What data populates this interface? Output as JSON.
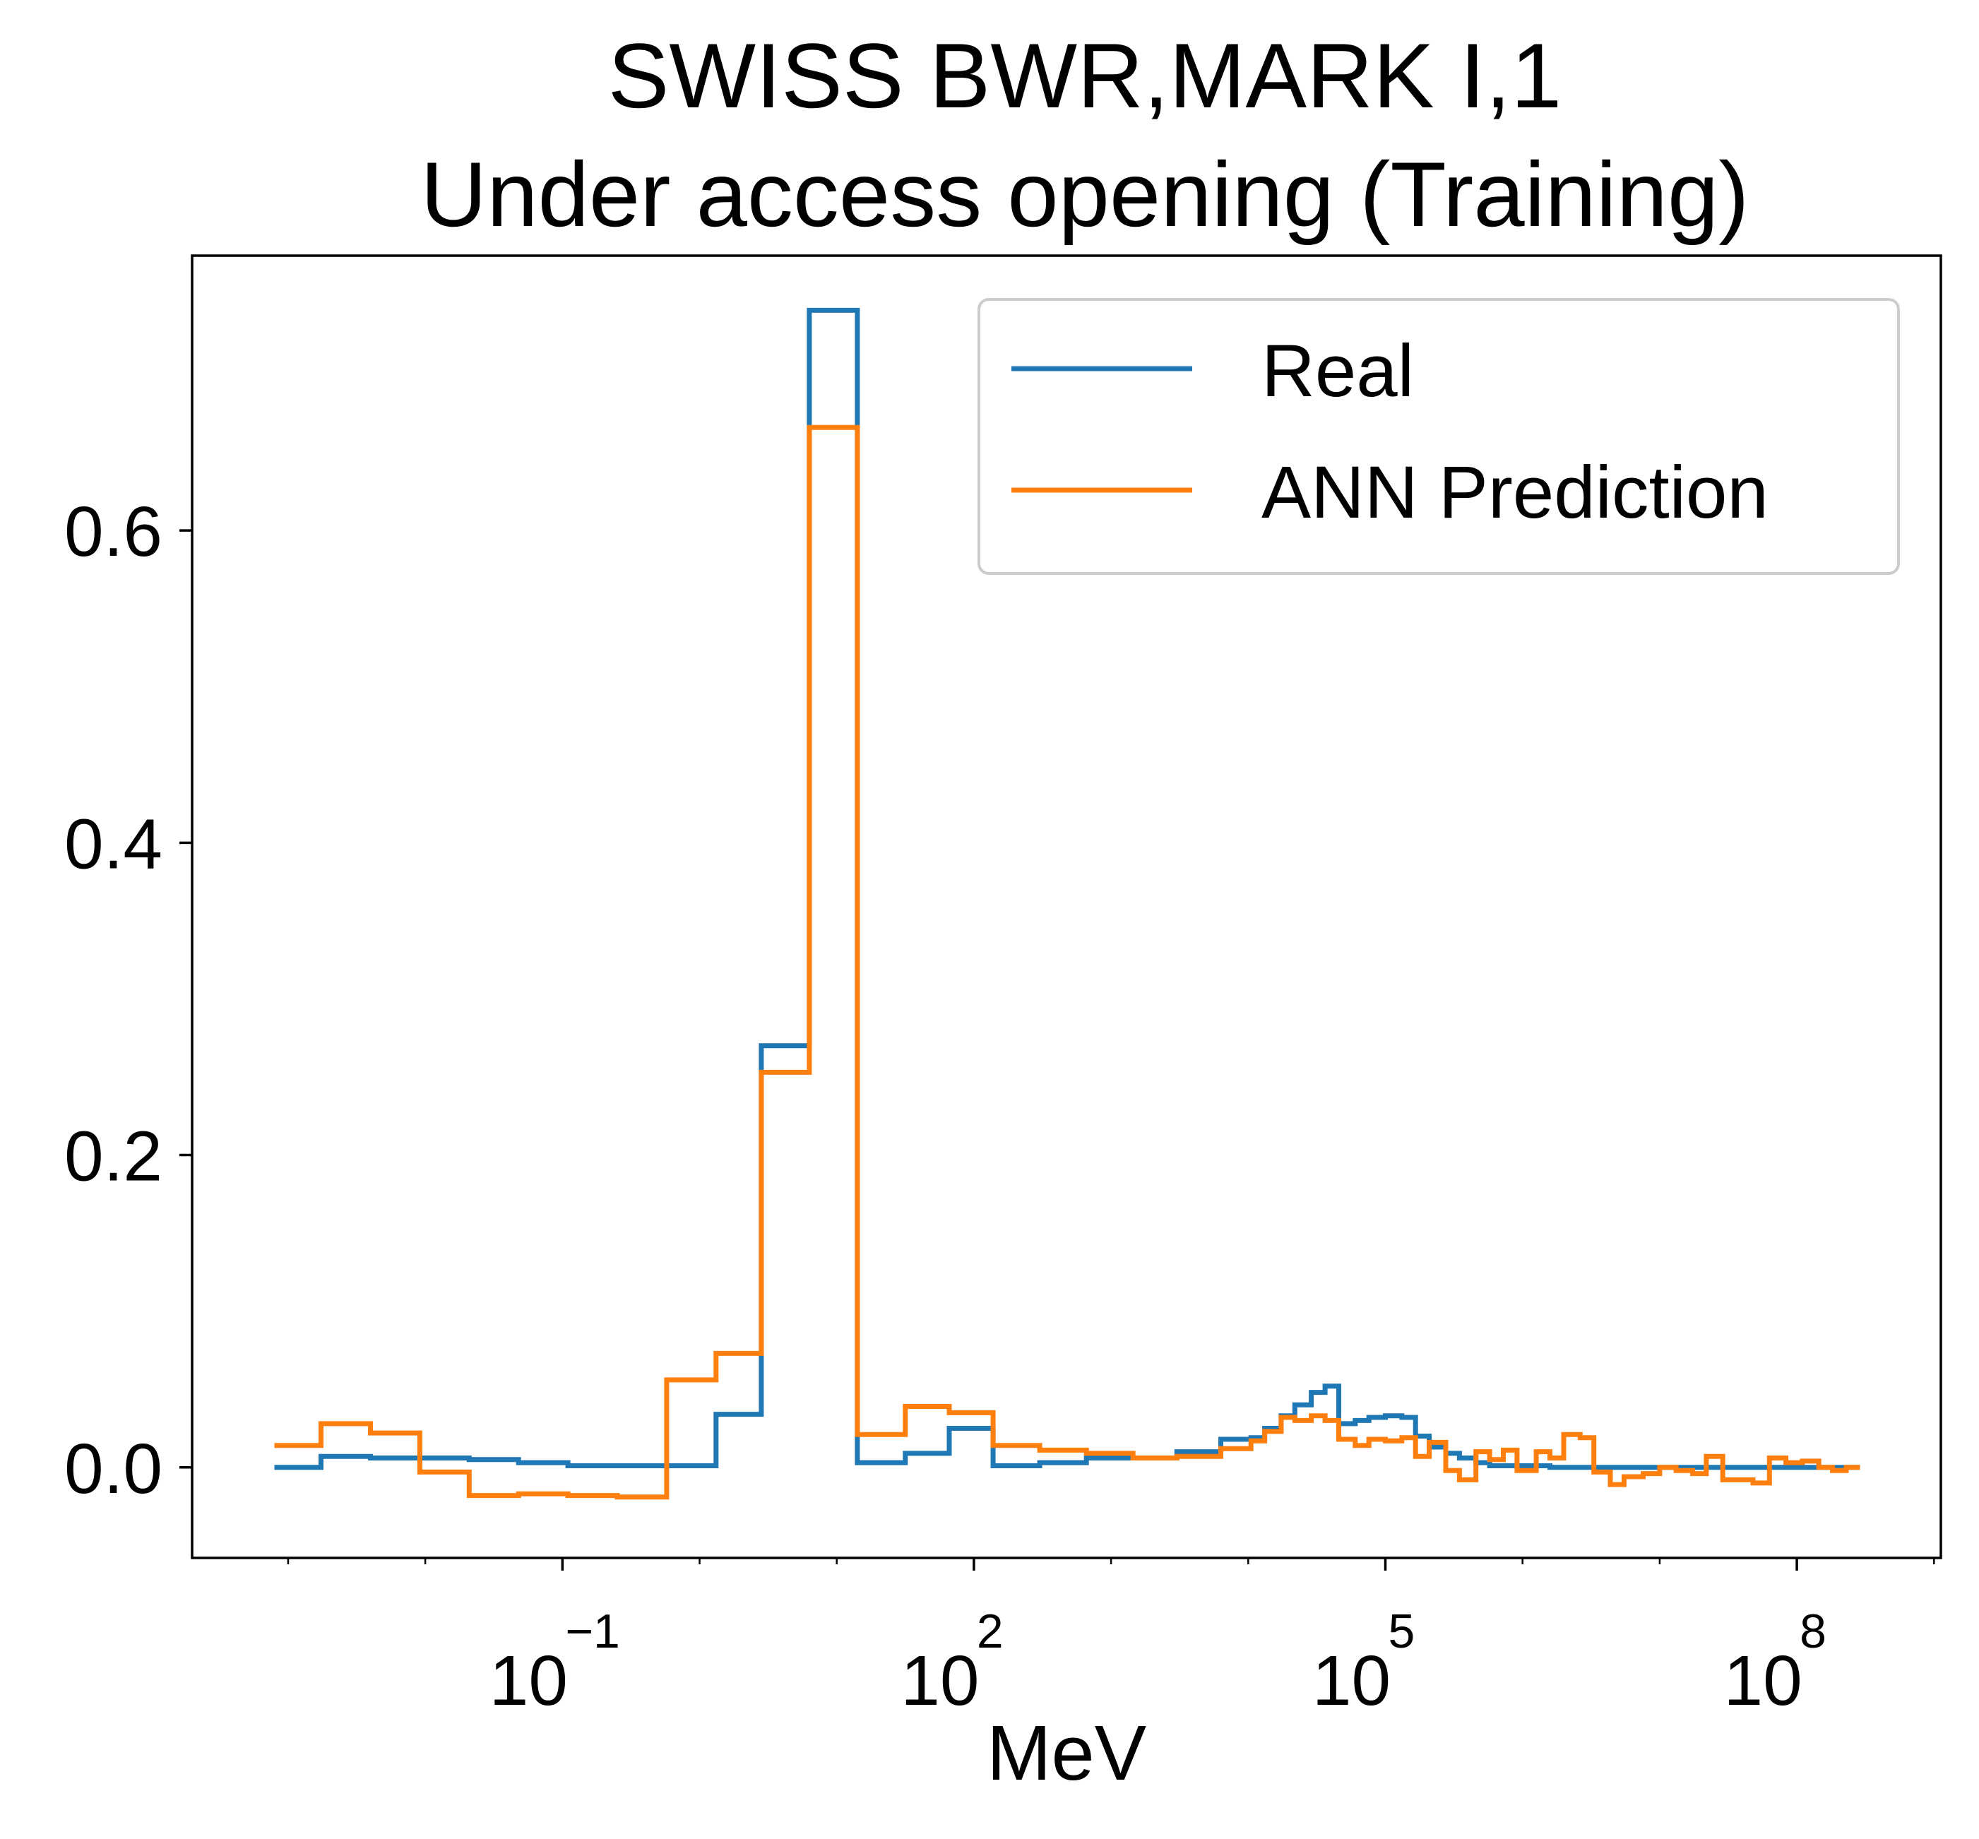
{
  "chart_data": {
    "type": "line",
    "drawstyle": "steps-post",
    "title": "SWISS BWR,MARK I,1\nUnder access opening (Training)",
    "title_lines": [
      "SWISS BWR,MARK I,1",
      "Under access opening (Training)"
    ],
    "xlabel": "MeV",
    "ylabel": "",
    "xscale": "log",
    "xlim_log10": [
      -3.7,
      9.05
    ],
    "ylim": [
      -0.058,
      0.776
    ],
    "xticks": [
      {
        "base": "10",
        "exp": "−1",
        "log10": -1
      },
      {
        "base": "10",
        "exp": "2",
        "log10": 2
      },
      {
        "base": "10",
        "exp": "5",
        "log10": 5
      },
      {
        "base": "10",
        "exp": "8",
        "log10": 8
      }
    ],
    "yticks": [
      {
        "label": "0.0",
        "value": 0.0
      },
      {
        "label": "0.2",
        "value": 0.2
      },
      {
        "label": "0.4",
        "value": 0.4
      },
      {
        "label": "0.6",
        "value": 0.6
      }
    ],
    "grid": false,
    "legend_position": "top-right",
    "x_log10_edges": [
      -3.1,
      -2.76,
      -2.4,
      -2.04,
      -1.68,
      -1.32,
      -0.96,
      -0.6,
      -0.24,
      0.12,
      0.45,
      0.8,
      1.15,
      1.5,
      1.82,
      2.14,
      2.48,
      2.82,
      3.16,
      3.48,
      3.8,
      3.92,
      4.02,
      4.12,
      4.24,
      4.34,
      4.46,
      4.56,
      4.66,
      4.78,
      4.88,
      5.0,
      5.12,
      5.22,
      5.32,
      5.44,
      5.54,
      5.66,
      5.76,
      5.86,
      5.96,
      6.1,
      6.2,
      6.3,
      6.42,
      6.52,
      6.64,
      6.74,
      6.88,
      7.0,
      7.12,
      7.24,
      7.34,
      7.46,
      7.58,
      7.68,
      7.8,
      7.92,
      8.04,
      8.16,
      8.26,
      8.36,
      8.46
    ],
    "series": [
      {
        "name": "Real",
        "color": "#1f77b4",
        "values": [
          0.0,
          0.007,
          0.006,
          0.006,
          0.005,
          0.003,
          0.001,
          0.001,
          0.001,
          0.034,
          0.27,
          0.741,
          0.003,
          0.009,
          0.025,
          0.001,
          0.003,
          0.006,
          0.006,
          0.01,
          0.018,
          0.018,
          0.019,
          0.025,
          0.033,
          0.04,
          0.048,
          0.052,
          0.028,
          0.03,
          0.032,
          0.033,
          0.032,
          0.02,
          0.013,
          0.009,
          0.006,
          0.003,
          0.001,
          0.001,
          0.001,
          0.001,
          0.0,
          0.0,
          0.0,
          0.0,
          0.0,
          0.0,
          0.0,
          0.0,
          0.0,
          0.0,
          0.0,
          0.0,
          0.0,
          0.0,
          0.0,
          0.0,
          0.0,
          0.0,
          0.0,
          0.0
        ]
      },
      {
        "name": "ANN Prediction",
        "color": "#ff7f0e",
        "values": [
          0.014,
          0.028,
          0.022,
          -0.003,
          -0.018,
          -0.017,
          -0.018,
          -0.019,
          0.056,
          0.073,
          0.253,
          0.666,
          0.021,
          0.039,
          0.035,
          0.014,
          0.011,
          0.009,
          0.006,
          0.007,
          0.012,
          0.012,
          0.017,
          0.023,
          0.032,
          0.03,
          0.033,
          0.03,
          0.018,
          0.014,
          0.018,
          0.017,
          0.019,
          0.007,
          0.016,
          -0.002,
          -0.008,
          0.01,
          0.005,
          0.011,
          -0.002,
          0.01,
          0.006,
          0.021,
          0.019,
          -0.003,
          -0.011,
          -0.006,
          -0.004,
          0.0,
          -0.002,
          -0.004,
          0.007,
          -0.008,
          -0.008,
          -0.01,
          0.006,
          0.003,
          0.004,
          0.0,
          -0.002,
          0.0
        ]
      }
    ]
  }
}
